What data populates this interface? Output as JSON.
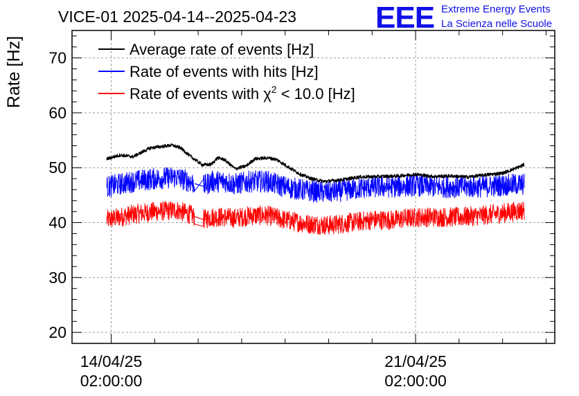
{
  "chart_data": {
    "type": "line",
    "title": "VICE-01 2025-04-14--2025-04-23",
    "logo": {
      "mark": "EEE",
      "line1": "Extreme Energy Events",
      "line2": "La Scienza nelle Scuole"
    },
    "xlabel": "",
    "ylabel": "Rate [Hz]",
    "xlim_days": [
      -0.9,
      10.2
    ],
    "ylim": [
      18,
      75
    ],
    "yticks": [
      20,
      30,
      40,
      50,
      60,
      70
    ],
    "xticks": [
      {
        "day": 0,
        "line1": "14/04/25",
        "line2": "02:00:00"
      },
      {
        "day": 7,
        "line1": "21/04/25",
        "line2": "02:00:00"
      }
    ],
    "grid": true,
    "legend_position": "top-left",
    "series": [
      {
        "name": "Average rate of events [Hz]",
        "legend_main": "Average rate of events [Hz]",
        "color": "#000000",
        "noise": 0.3,
        "gap": false,
        "anchors": {
          "x": [
            -0.1,
            0.2,
            0.5,
            0.9,
            1.1,
            1.4,
            1.6,
            1.8,
            2.1,
            2.3,
            2.45,
            2.6,
            2.85,
            3.1,
            3.3,
            3.6,
            3.8,
            4.0,
            4.2,
            4.35,
            4.6,
            4.9,
            5.3,
            5.7,
            6.2,
            6.6,
            7.0,
            7.4,
            7.8,
            8.2,
            8.6,
            9.0,
            9.4,
            9.5
          ],
          "y": [
            51.6,
            52.3,
            52.0,
            53.6,
            53.8,
            54.1,
            53.6,
            52.2,
            50.5,
            50.6,
            51.8,
            51.5,
            49.8,
            50.3,
            51.6,
            51.8,
            51.5,
            50.5,
            49.5,
            48.8,
            48.0,
            47.5,
            47.8,
            48.3,
            48.4,
            48.5,
            48.8,
            48.4,
            48.5,
            48.3,
            48.7,
            49.0,
            50.2,
            50.6
          ]
        }
      },
      {
        "name": "Rate of events with hits [Hz]",
        "legend_main": "Rate of events with hits [Hz]",
        "color": "#0000ff",
        "noise": 2.0,
        "gap": true,
        "anchors": {
          "x": [
            -0.1,
            0.5,
            1.0,
            1.5,
            1.8,
            2.1,
            2.3,
            2.45,
            2.6,
            2.85,
            3.2,
            3.6,
            4.0,
            4.5,
            5.0,
            5.5,
            6.0,
            6.5,
            7.0,
            7.5,
            8.0,
            8.5,
            9.0,
            9.5
          ],
          "y": [
            46.5,
            47.5,
            48.0,
            48.3,
            47.5,
            46.5,
            47.5,
            47.5,
            47.5,
            47.0,
            47.5,
            47.5,
            46.5,
            45.8,
            45.5,
            46.0,
            46.5,
            46.5,
            46.8,
            46.5,
            46.5,
            46.5,
            46.8,
            47.0
          ]
        }
      },
      {
        "name": "Rate of events with chi2 < 10.0 [Hz]",
        "legend_main": "Rate of events with ",
        "legend_chi": "χ",
        "legend_sup": "2",
        "legend_tail": " < 10.0 [Hz]",
        "color": "#ff0000",
        "noise": 1.8,
        "gap": true,
        "anchors": {
          "x": [
            -0.1,
            0.5,
            1.0,
            1.5,
            1.8,
            2.1,
            2.3,
            2.45,
            2.6,
            2.85,
            3.2,
            3.6,
            4.0,
            4.5,
            5.0,
            5.5,
            6.0,
            6.5,
            7.0,
            7.5,
            8.0,
            8.5,
            9.0,
            9.5
          ],
          "y": [
            40.5,
            41.5,
            42.0,
            42.3,
            41.5,
            40.5,
            41.0,
            41.0,
            41.0,
            40.8,
            41.3,
            41.3,
            40.5,
            39.8,
            39.5,
            40.0,
            40.5,
            40.5,
            41.0,
            41.0,
            41.0,
            41.3,
            41.7,
            42.3
          ]
        }
      }
    ]
  }
}
